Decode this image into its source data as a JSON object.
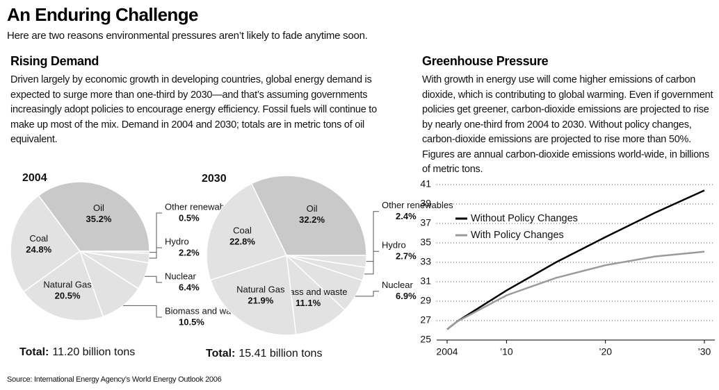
{
  "header": {
    "title": "An Enduring Challenge",
    "subtitle": "Here are two reasons environmental pressures aren’t likely to fade anytime soon."
  },
  "sections": [
    {
      "title": "Rising Demand",
      "text": "Driven largely by economic growth in developing countries, global energy demand is expected to surge more than one-third by 2030—and that’s assuming governments increasingly adopt policies to encourage energy efficiency. Fossil fuels will continue to make up most of the mix. Demand in 2004 and 2030; totals are in metric tons of oil equivalent."
    },
    {
      "title": "Greenhouse Pressure",
      "text": "With growth in energy use will come higher emissions of carbon dioxide, which is contributing to global warming. Even if government policies get greener, carbon-dioxide emissions are projected to rise by nearly one-third from 2004 to 2030. Without policy changes, carbon-dioxide emissions are projected to rise more than 50%. Figures are annual carbon-dioxide emissions world-wide, in billions of metric tons."
    }
  ],
  "source": "Source: International Energy Agency’s World Energy Outlook 2006",
  "chart_data": [
    {
      "type": "pie",
      "title": "2004",
      "categories": [
        "Oil",
        "Other renewables",
        "Hydro",
        "Nuclear",
        "Biomass and waste",
        "Natural Gas",
        "Coal"
      ],
      "values": [
        35.2,
        0.5,
        2.2,
        6.4,
        10.5,
        20.5,
        24.8
      ],
      "value_labels": [
        "35.2%",
        "0.5%",
        "2.2%",
        "6.4%",
        "10.5%",
        "20.5%",
        "24.8%"
      ],
      "colors": [
        "#c9c9c9",
        "#e2e2e2",
        "#e2e2e2",
        "#e2e2e2",
        "#e2e2e2",
        "#e2e2e2",
        "#e2e2e2"
      ],
      "total_label": "Total:",
      "total": "11.20 billion tons"
    },
    {
      "type": "pie",
      "title": "2030",
      "categories": [
        "Oil",
        "Other renewables",
        "Hydro",
        "Nuclear",
        "Biomass and waste",
        "Natural Gas",
        "Coal"
      ],
      "values": [
        32.2,
        2.4,
        2.7,
        6.9,
        11.1,
        21.9,
        22.8
      ],
      "value_labels": [
        "32.2%",
        "2.4%",
        "2.7%",
        "6.9%",
        "11.1%",
        "21.9%",
        "22.8%"
      ],
      "colors": [
        "#c9c9c9",
        "#e2e2e2",
        "#e2e2e2",
        "#e2e2e2",
        "#e2e2e2",
        "#e2e2e2",
        "#e2e2e2"
      ],
      "total_label": "Total:",
      "total": "15.41 billion tons"
    },
    {
      "type": "line",
      "x": [
        2004,
        2005,
        2010,
        2015,
        2020,
        2025,
        2030
      ],
      "series": [
        {
          "name": "Without Policy Changes",
          "color": "#000000",
          "values": [
            26.1,
            26.9,
            30.1,
            33.0,
            35.6,
            38.1,
            40.4
          ]
        },
        {
          "name": "With Policy Changes",
          "color": "#9a9a9a",
          "values": [
            26.1,
            26.9,
            29.6,
            31.4,
            32.7,
            33.6,
            34.1
          ]
        }
      ],
      "xlim": [
        2004,
        2030
      ],
      "xticks": [
        2004,
        {
          "value": 2010,
          "label": "’10"
        },
        {
          "value": 2020,
          "label": "’20"
        },
        {
          "value": 2030,
          "label": "’30"
        }
      ],
      "ylim": [
        25,
        41
      ],
      "yticks": [
        25,
        27,
        29,
        31,
        33,
        35,
        37,
        39,
        41
      ],
      "grid": true
    }
  ]
}
